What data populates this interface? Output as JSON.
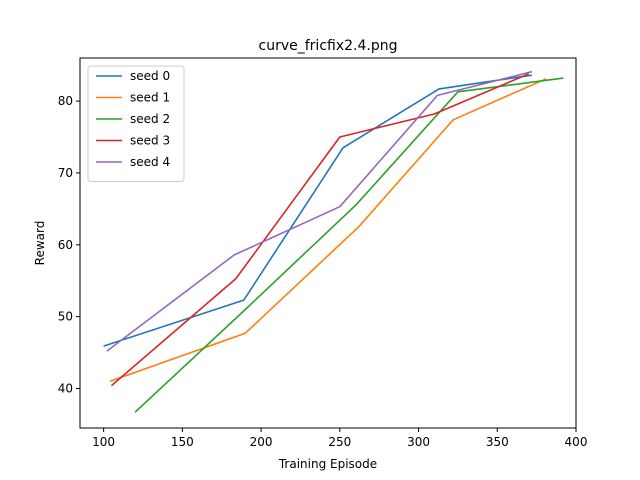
{
  "chart_data": {
    "type": "line",
    "title": "curve_fricfix2.4.png",
    "xlabel": "Training Episode",
    "ylabel": "Reward",
    "xlim": [
      85,
      400
    ],
    "ylim": [
      34.5,
      86
    ],
    "xticks": [
      100,
      150,
      200,
      250,
      300,
      350,
      400
    ],
    "yticks": [
      40,
      50,
      60,
      70,
      80
    ],
    "grid": false,
    "legend_position": "top-left",
    "series": [
      {
        "name": "seed 0",
        "color": "#1f77b4",
        "x": [
          100,
          189,
          252,
          313,
          372
        ],
        "y": [
          45.9,
          52.3,
          73.5,
          81.7,
          83.6
        ]
      },
      {
        "name": "seed 1",
        "color": "#ff7f0e",
        "x": [
          104,
          190,
          262,
          322,
          381
        ],
        "y": [
          41.0,
          47.7,
          62.5,
          77.4,
          83.1
        ]
      },
      {
        "name": "seed 2",
        "color": "#2ca02c",
        "x": [
          120,
          190,
          260,
          325,
          392
        ],
        "y": [
          36.7,
          51.0,
          65.5,
          81.3,
          83.2
        ]
      },
      {
        "name": "seed 3",
        "color": "#d62728",
        "x": [
          105,
          184,
          250,
          310,
          370
        ],
        "y": [
          40.4,
          55.3,
          75.0,
          78.2,
          83.8
        ]
      },
      {
        "name": "seed 4",
        "color": "#9467bd",
        "x": [
          102,
          183,
          250,
          312,
          372
        ],
        "y": [
          45.2,
          58.6,
          65.3,
          80.8,
          84.1
        ]
      }
    ]
  }
}
